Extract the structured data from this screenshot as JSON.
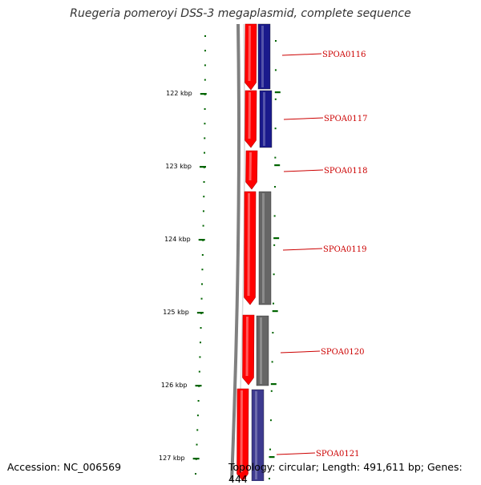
{
  "title": "Ruegeria pomeroyi DSS-3 megaplasmid, complete sequence",
  "accession": "Accession: NC_006569",
  "summary": "Topology: circular; Length: 491,611 bp; Genes: 444",
  "colors": {
    "forward_cds": "#ff0000",
    "reverse_cds_blue": "#1a1a8c",
    "reverse_cds_gray": "#666666",
    "backbone": "#808080",
    "tick": "#006400",
    "label": "#cc0000"
  },
  "kbp_labels": [
    "122 kbp",
    "123 kbp",
    "124 kbp",
    "125 kbp",
    "126 kbp",
    "127 kbp"
  ],
  "genes": [
    {
      "id": "SPOA0116"
    },
    {
      "id": "SPOA0117"
    },
    {
      "id": "SPOA0118"
    },
    {
      "id": "SPOA0119"
    },
    {
      "id": "SPOA0120"
    },
    {
      "id": "SPOA0121"
    }
  ]
}
